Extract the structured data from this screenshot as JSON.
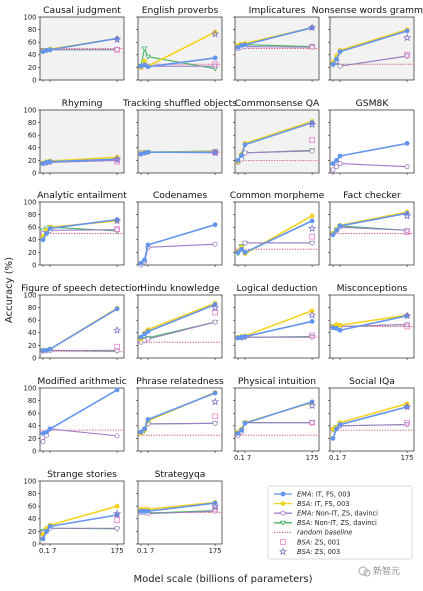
{
  "figure": {
    "ylabel": "Accuracy (%)",
    "xlabel": "Model scale (billions of parameters)",
    "watermark": "新智元"
  },
  "colors": {
    "ema": "#6495ED",
    "bsa": "#F5D31E",
    "ema_nonit": "#A07CC8",
    "bsa_nonit": "#45B566",
    "baseline": "#D9506A",
    "bsa_zs001": "#E87FC9",
    "bsa_zs003": "#7E74C6",
    "panel_bg": "#F2F2F2"
  },
  "legend": {
    "entries": [
      {
        "key": "ema",
        "name": "EMA: IT, FS, 003",
        "marker": "circle-filled",
        "line": "solid"
      },
      {
        "key": "bsa",
        "name": "BSA: IT, FS, 003",
        "marker": "circle-filled",
        "line": "solid"
      },
      {
        "key": "ema_nonit",
        "name": "EMA: Non-IT, ZS, davinci",
        "marker": "circle-open",
        "line": "solid"
      },
      {
        "key": "bsa_nonit",
        "name": "BSA: Non-IT, ZS, davinci",
        "marker": "triangle-open",
        "line": "solid"
      },
      {
        "key": "baseline",
        "name": "random baseline",
        "marker": "none",
        "line": "dotted"
      },
      {
        "key": "bsa_zs001",
        "name": "BSA: ZS, 001",
        "marker": "square-open",
        "line": "none"
      },
      {
        "key": "bsa_zs003",
        "name": "BSA: ZS, 003",
        "marker": "star-open",
        "line": "none"
      }
    ]
  },
  "chart_data": {
    "type": "line",
    "x": [
      0.1,
      1,
      7,
      175
    ],
    "xticks": [
      "0.1",
      "1",
      "7",
      "175"
    ],
    "ylim": [
      0,
      100
    ],
    "yticks": [
      "0",
      "20",
      "40",
      "60",
      "80",
      "100"
    ],
    "layout": "grid 6 rows x 4 columns",
    "panels": [
      {
        "title": "Causal judgment",
        "baseline": 50,
        "shaded": true,
        "series": {
          "ema": [
            45,
            47,
            48,
            66
          ],
          "bsa": [
            46,
            47,
            49,
            66
          ],
          "ema_nonit": [
            47,
            47,
            48,
            48
          ],
          "bsa_nonit": [
            47,
            47,
            48,
            48
          ]
        },
        "zs001": 48,
        "zs003": 64
      },
      {
        "title": "English proverbs",
        "baseline": 25,
        "shaded": true,
        "series": {
          "ema": [
            22,
            24,
            21,
            35
          ],
          "bsa": [
            20,
            30,
            22,
            76
          ],
          "ema_nonit": [
            20,
            24,
            22,
            22
          ],
          "bsa_nonit": [
            22,
            50,
            37,
            18
          ]
        },
        "zs001": 25,
        "zs003": 73
      },
      {
        "title": "Implicatures",
        "baseline": 50,
        "shaded": true,
        "series": {
          "ema": [
            52,
            55,
            56,
            83
          ],
          "bsa": [
            55,
            57,
            58,
            83
          ],
          "ema_nonit": [
            50,
            52,
            53,
            52
          ],
          "bsa_nonit": [
            53,
            56,
            56,
            53
          ]
        },
        "zs001": 53,
        "zs003": 83
      },
      {
        "title": "Nonsense words grammar",
        "baseline": 25,
        "shaded": true,
        "series": {
          "ema": [
            25,
            33,
            45,
            78
          ],
          "bsa": [
            28,
            38,
            47,
            80
          ],
          "ema_nonit": [
            25,
            30,
            22,
            38
          ],
          "bsa_nonit": [
            24,
            28,
            22,
            38
          ]
        },
        "zs001": 40,
        "zs003": 67
      },
      {
        "title": "Rhyming",
        "baseline": null,
        "shaded": true,
        "series": {
          "ema": [
            15,
            17,
            18,
            22
          ],
          "bsa": [
            16,
            18,
            19,
            25
          ],
          "ema_nonit": [
            15,
            16,
            17,
            20
          ],
          "bsa_nonit": [
            15,
            16,
            18,
            21
          ]
        },
        "zs001": 18,
        "zs003": 22
      },
      {
        "title": "Tracking shuffled objects",
        "baseline": 33,
        "shaded": true,
        "series": {
          "ema": [
            30,
            32,
            33,
            33
          ],
          "bsa": [
            31,
            33,
            33,
            34
          ],
          "ema_nonit": [
            32,
            32,
            33,
            32
          ],
          "bsa_nonit": [
            31,
            32,
            33,
            35
          ]
        },
        "zs001": 33,
        "zs003": 32
      },
      {
        "title": "Commonsense QA",
        "baseline": 20,
        "shaded": true,
        "series": {
          "ema": [
            20,
            28,
            45,
            80
          ],
          "bsa": [
            18,
            30,
            47,
            82
          ],
          "ema_nonit": [
            17,
            22,
            32,
            35
          ],
          "bsa_nonit": [
            18,
            25,
            32,
            36
          ]
        },
        "zs001": 52,
        "zs003": 77
      },
      {
        "title": "GSM8K",
        "baseline": null,
        "shaded": false,
        "series": {
          "ema": [
            15,
            20,
            27,
            47
          ],
          "bsa": null,
          "ema_nonit": [
            5,
            10,
            15,
            10
          ],
          "bsa_nonit": null
        },
        "zs001": null,
        "zs003": null
      },
      {
        "title": "Analytic entailment",
        "baseline": 50,
        "shaded": false,
        "series": {
          "ema": [
            40,
            50,
            58,
            72
          ],
          "bsa": [
            45,
            55,
            60,
            70
          ],
          "ema_nonit": [
            50,
            52,
            55,
            56
          ],
          "bsa_nonit": [
            55,
            58,
            60,
            54
          ]
        },
        "zs001": 57,
        "zs003": 70
      },
      {
        "title": "Codenames",
        "baseline": null,
        "shaded": false,
        "series": {
          "ema": [
            3,
            8,
            32,
            64
          ],
          "bsa": null,
          "ema_nonit": [
            0,
            5,
            28,
            33
          ],
          "bsa_nonit": null
        },
        "zs001": null,
        "zs003": null
      },
      {
        "title": "Common morpheme",
        "baseline": 25,
        "shaded": false,
        "series": {
          "ema": [
            20,
            25,
            20,
            70
          ],
          "bsa": [
            22,
            28,
            18,
            78
          ],
          "ema_nonit": [
            22,
            25,
            35,
            35
          ],
          "bsa_nonit": [
            18,
            30,
            35,
            35
          ]
        },
        "zs001": 45,
        "zs003": 58
      },
      {
        "title": "Fact checker",
        "baseline": 50,
        "shaded": false,
        "series": {
          "ema": [
            48,
            55,
            62,
            82
          ],
          "bsa": [
            50,
            57,
            63,
            84
          ],
          "ema_nonit": [
            50,
            55,
            60,
            55
          ],
          "bsa_nonit": [
            50,
            56,
            62,
            55
          ]
        },
        "zs001": 52,
        "zs003": 78
      },
      {
        "title": "Figure of speech detection",
        "baseline": 10,
        "shaded": false,
        "series": {
          "ema": [
            12,
            12,
            14,
            78
          ],
          "bsa": [
            12,
            12,
            14,
            79
          ],
          "ema_nonit": [
            11,
            12,
            12,
            12
          ],
          "bsa_nonit": [
            12,
            12,
            12,
            11
          ]
        },
        "zs001": 18,
        "zs003": 44
      },
      {
        "title": "Hindu knowledge",
        "baseline": 25,
        "shaded": false,
        "series": {
          "ema": [
            33,
            38,
            42,
            85
          ],
          "bsa": [
            30,
            40,
            45,
            87
          ],
          "ema_nonit": [
            25,
            28,
            30,
            57
          ],
          "bsa_nonit": [
            28,
            30,
            32,
            57
          ]
        },
        "zs001": 72,
        "zs003": 80
      },
      {
        "title": "Logical deduction",
        "baseline": 33,
        "shaded": false,
        "series": {
          "ema": [
            32,
            33,
            34,
            58
          ],
          "bsa": [
            33,
            34,
            35,
            75
          ],
          "ema_nonit": [
            32,
            32,
            33,
            33
          ],
          "bsa_nonit": [
            32,
            32,
            33,
            34
          ]
        },
        "zs001": 36,
        "zs003": 68
      },
      {
        "title": "Misconceptions",
        "baseline": 50,
        "shaded": false,
        "series": {
          "ema": [
            48,
            47,
            44,
            67
          ],
          "bsa": [
            50,
            53,
            52,
            68
          ],
          "ema_nonit": [
            50,
            50,
            50,
            53
          ],
          "bsa_nonit": [
            50,
            50,
            50,
            53
          ]
        },
        "zs001": 50,
        "zs003": 67
      },
      {
        "title": "Modified arithmetic",
        "baseline": 33,
        "shaded": false,
        "series": {
          "ema": [
            28,
            30,
            35,
            97
          ],
          "bsa": null,
          "ema_nonit": [
            15,
            25,
            35,
            24
          ],
          "bsa_nonit": null
        },
        "zs001": null,
        "zs003": null
      },
      {
        "title": "Phrase relatedness",
        "baseline": 25,
        "shaded": false,
        "series": {
          "ema": [
            30,
            35,
            50,
            92
          ],
          "bsa": [
            28,
            33,
            48,
            93
          ],
          "ema_nonit": [
            30,
            35,
            43,
            44
          ],
          "bsa_nonit": [
            28,
            32,
            43,
            44
          ]
        },
        "zs001": 55,
        "zs003": 78
      },
      {
        "title": "Physical intuition",
        "baseline": 25,
        "shaded": false,
        "series": {
          "ema": [
            28,
            33,
            44,
            78
          ],
          "bsa": [
            30,
            35,
            45,
            77
          ],
          "ema_nonit": [
            25,
            30,
            45,
            45
          ],
          "bsa_nonit": [
            28,
            32,
            45,
            45
          ]
        },
        "zs001": 45,
        "zs003": 72
      },
      {
        "title": "Social IQa",
        "baseline": 33,
        "shaded": false,
        "series": {
          "ema": [
            20,
            35,
            42,
            70
          ],
          "bsa": [
            35,
            38,
            45,
            75
          ],
          "ema_nonit": [
            35,
            37,
            40,
            42
          ],
          "bsa_nonit": [
            33,
            38,
            40,
            42
          ]
        },
        "zs001": 45,
        "zs003": 70
      },
      {
        "title": "Strange stories",
        "baseline": null,
        "shaded": false,
        "series": {
          "ema": [
            8,
            20,
            28,
            46
          ],
          "bsa": [
            15,
            25,
            30,
            60
          ],
          "ema_nonit": [
            18,
            20,
            25,
            25
          ],
          "bsa_nonit": [
            20,
            22,
            25,
            24
          ]
        },
        "zs001": 38,
        "zs003": 48
      },
      {
        "title": "Strategyqa",
        "baseline": 50,
        "shaded": false,
        "series": {
          "ema": [
            52,
            52,
            52,
            65
          ],
          "bsa": [
            55,
            55,
            55,
            66
          ],
          "ema_nonit": [
            50,
            50,
            48,
            52
          ],
          "bsa_nonit": [
            50,
            50,
            49,
            53
          ]
        },
        "zs001": 55,
        "zs003": 60
      }
    ]
  }
}
